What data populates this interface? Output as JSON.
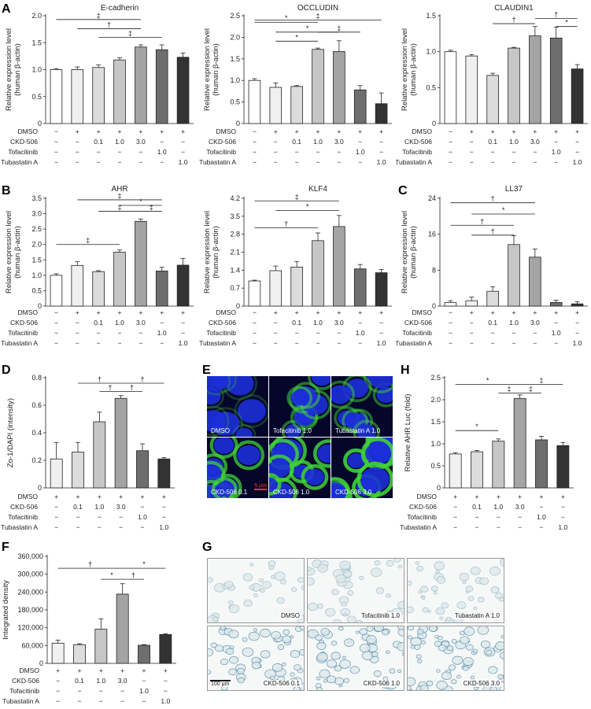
{
  "panel_letters": [
    "A",
    "B",
    "C",
    "D",
    "E",
    "F",
    "G",
    "H"
  ],
  "common": {
    "treat_labels": [
      "DMSO",
      "CKD-506",
      "Tofacitinib",
      "Tubastatin A"
    ],
    "treat_rows7": [
      [
        "−",
        "+",
        "+",
        "+",
        "+",
        "+",
        "+"
      ],
      [
        "−",
        "−",
        "0.1",
        "1.0",
        "3.0",
        "−",
        "−"
      ],
      [
        "−",
        "−",
        "−",
        "−",
        "−",
        "1.0",
        "−"
      ],
      [
        "−",
        "−",
        "−",
        "−",
        "−",
        "−",
        "1.0"
      ]
    ],
    "treat_rows6": [
      [
        "+",
        "+",
        "+",
        "+",
        "+",
        "+"
      ],
      [
        "−",
        "0.1",
        "1.0",
        "3.0",
        "−",
        "−"
      ],
      [
        "−",
        "−",
        "−",
        "−",
        "1.0",
        "−"
      ],
      [
        "−",
        "−",
        "−",
        "−",
        "−",
        "1.0"
      ]
    ],
    "ylabel_rel": [
      "Relative expression level",
      "(human β-actin)"
    ],
    "fills7": [
      "#ffffff",
      "#f0f0f0",
      "#dcdcdc",
      "#c6c6c6",
      "#a4a4a4",
      "#6e6e6e",
      "#333333"
    ],
    "fills6": [
      "#f0f0f0",
      "#dcdcdc",
      "#c6c6c6",
      "#a4a4a4",
      "#6e6e6e",
      "#333333"
    ]
  },
  "chart_data": [
    {
      "id": "A1",
      "type": "bar",
      "title": "E-cadherin",
      "ylabel": [
        "Relative expression level",
        "(human β-actin)"
      ],
      "ylim": [
        0,
        2.0
      ],
      "yticks": [
        "0",
        "0.5",
        "1.0",
        "1.5",
        "2.0"
      ],
      "values": [
        1.0,
        1.0,
        1.04,
        1.18,
        1.42,
        1.37,
        1.23
      ],
      "errors": [
        0.02,
        0.05,
        0.05,
        0.04,
        0.04,
        0.09,
        0.08
      ],
      "sig": [
        {
          "from": 0,
          "to": 4,
          "mark": "‡",
          "level": 1.93
        },
        {
          "from": 1,
          "to": 4,
          "mark": "†",
          "level": 1.76
        },
        {
          "from": 2,
          "to": 5,
          "mark": "‡",
          "level": 1.6
        }
      ]
    },
    {
      "id": "A2",
      "type": "bar",
      "title": "OCCLUDIN",
      "ylabel": [
        "Relative expression level",
        "(human β-actin)"
      ],
      "ylim": [
        0,
        2.5
      ],
      "yticks": [
        "0",
        "0.5",
        "1.0",
        "1.5",
        "2.0",
        "2.5"
      ],
      "values": [
        1.0,
        0.84,
        0.86,
        1.72,
        1.67,
        0.78,
        0.46
      ],
      "errors": [
        0.04,
        0.1,
        0.02,
        0.03,
        0.25,
        0.1,
        0.25
      ],
      "sig": [
        {
          "from": 0,
          "to": 3,
          "mark": "*",
          "level": 2.35
        },
        {
          "from": 0,
          "to": 6,
          "mark": "‡",
          "level": 2.4,
          "stagger": true
        },
        {
          "from": 1,
          "to": 4,
          "mark": "*",
          "level": 2.12
        },
        {
          "from": 3,
          "to": 5,
          "mark": "‡",
          "level": 2.12
        },
        {
          "from": 1,
          "to": 3,
          "mark": "*",
          "level": 1.91
        }
      ]
    },
    {
      "id": "A3",
      "type": "bar",
      "title": "CLAUDIN1",
      "ylabel": [
        "Relative expression level",
        "(human β-actin)"
      ],
      "ylim": [
        0,
        1.5
      ],
      "yticks": [
        "0",
        "0.5",
        "1.0",
        "1.5"
      ],
      "values": [
        1.0,
        0.94,
        0.67,
        1.05,
        1.22,
        1.19,
        0.76
      ],
      "errors": [
        0.02,
        0.02,
        0.03,
        0.01,
        0.13,
        0.15,
        0.06
      ],
      "sig": [
        {
          "from": 2,
          "to": 4,
          "mark": "†",
          "level": 1.39
        },
        {
          "from": 4,
          "to": 6,
          "mark": "†",
          "level": 1.46
        },
        {
          "from": 5,
          "to": 6,
          "mark": "*",
          "level": 1.35
        }
      ]
    },
    {
      "id": "B1",
      "type": "bar",
      "title": "AHR",
      "ylabel": [
        "Relative expression level",
        "(human β-actin)"
      ],
      "ylim": [
        0,
        3.5
      ],
      "yticks": [
        "0",
        "0.5",
        "1.0",
        "1.5",
        "2.0",
        "2.5",
        "3.0",
        "3.5"
      ],
      "values": [
        1.0,
        1.32,
        1.12,
        1.75,
        2.75,
        1.14,
        1.33
      ],
      "errors": [
        0.05,
        0.12,
        0.03,
        0.07,
        0.08,
        0.12,
        0.22
      ],
      "sig": [
        {
          "from": 1,
          "to": 5,
          "mark": "‡",
          "level": 3.45
        },
        {
          "from": 3,
          "to": 5,
          "mark": "*",
          "level": 3.27
        },
        {
          "from": 2,
          "to": 4,
          "mark": "‡",
          "level": 3.08
        },
        {
          "from": 4,
          "to": 5,
          "mark": "‡",
          "level": 3.08
        },
        {
          "from": 0,
          "to": 3,
          "mark": "‡",
          "level": 2.0
        }
      ]
    },
    {
      "id": "B2",
      "type": "bar",
      "title": "KLF4",
      "ylabel": [
        "Relative expression level",
        "(human β-actin)"
      ],
      "ylim": [
        0,
        4.2
      ],
      "yticks": [
        "0",
        "0.7",
        "1.4",
        "2.1",
        "2.8",
        "3.5",
        "4.2"
      ],
      "values": [
        0.98,
        1.38,
        1.52,
        2.55,
        3.1,
        1.45,
        1.3
      ],
      "errors": [
        0.03,
        0.18,
        0.22,
        0.3,
        0.43,
        0.17,
        0.13
      ],
      "sig": [
        {
          "from": 0,
          "to": 4,
          "mark": "‡",
          "level": 4.1
        },
        {
          "from": 1,
          "to": 4,
          "mark": "*",
          "level": 3.72
        },
        {
          "from": 0,
          "to": 3,
          "mark": "†",
          "level": 3.05
        }
      ]
    },
    {
      "id": "C",
      "type": "bar",
      "title": "LL37",
      "ylabel": [
        "Relative expression level",
        "(human β-actin)"
      ],
      "ylim": [
        0,
        24
      ],
      "yticks": [
        "0",
        "8",
        "16",
        "24"
      ],
      "values": [
        0.8,
        1.2,
        3.3,
        13.7,
        10.9,
        0.8,
        0.5
      ],
      "errors": [
        0.4,
        0.8,
        1.0,
        2.0,
        1.8,
        0.5,
        0.5
      ],
      "sig": [
        {
          "from": 0,
          "to": 4,
          "mark": "†",
          "level": 23.0
        },
        {
          "from": 1,
          "to": 4,
          "mark": "*",
          "level": 20.5
        },
        {
          "from": 0,
          "to": 3,
          "mark": "†",
          "level": 18.0
        },
        {
          "from": 1,
          "to": 3,
          "mark": "†",
          "level": 15.8
        }
      ]
    },
    {
      "id": "D",
      "type": "bar",
      "title": "",
      "ylabel": [
        "Zo-1/DAPI (intensity)"
      ],
      "ylim": [
        0,
        0.8
      ],
      "yticks": [
        "0",
        "0.2",
        "0.4",
        "0.6",
        "0.8"
      ],
      "values": [
        0.21,
        0.26,
        0.48,
        0.65,
        0.27,
        0.21
      ],
      "errors": [
        0.12,
        0.07,
        0.07,
        0.02,
        0.05,
        0.01
      ],
      "sig": [
        {
          "from": 1,
          "to": 3,
          "mark": "†",
          "level": 0.76
        },
        {
          "from": 3,
          "to": 5,
          "mark": "†",
          "level": 0.76
        },
        {
          "from": 2,
          "to": 3,
          "mark": "†",
          "level": 0.7
        },
        {
          "from": 3,
          "to": 4,
          "mark": "†",
          "level": 0.7
        }
      ]
    },
    {
      "id": "H",
      "type": "bar",
      "title": "",
      "ylabel": [
        "Relative AHR Luc (fold)"
      ],
      "ylim": [
        0,
        2.5
      ],
      "yticks": [
        "0",
        "0.5",
        "1.0",
        "1.5",
        "2.0",
        "2.5"
      ],
      "values": [
        0.77,
        0.82,
        1.06,
        2.03,
        1.09,
        0.96
      ],
      "errors": [
        0.03,
        0.03,
        0.05,
        0.08,
        0.08,
        0.07
      ],
      "sig": [
        {
          "from": 0,
          "to": 3,
          "mark": "*",
          "level": 2.35
        },
        {
          "from": 3,
          "to": 5,
          "mark": "‡",
          "level": 2.35
        },
        {
          "from": 0,
          "to": 2,
          "mark": "*",
          "level": 1.3
        },
        {
          "from": 2,
          "to": 3,
          "mark": "‡",
          "level": 2.15
        },
        {
          "from": 3,
          "to": 4,
          "mark": "‡",
          "level": 2.15
        }
      ]
    },
    {
      "id": "F",
      "type": "bar",
      "title": "",
      "ylabel": [
        "Integrated density"
      ],
      "ylim": [
        0,
        360000
      ],
      "yticks": [
        "0",
        "60,000",
        "120,000",
        "180,000",
        "240,000",
        "300,000",
        "360,000"
      ],
      "values": [
        68000,
        63000,
        115000,
        233000,
        61000,
        97000
      ],
      "errors": [
        10000,
        3000,
        35000,
        35000,
        2000,
        3000
      ],
      "sig": [
        {
          "from": 0,
          "to": 3,
          "mark": "†",
          "level": 320000
        },
        {
          "from": 3,
          "to": 5,
          "mark": "*",
          "level": 320000
        },
        {
          "from": 2,
          "to": 3,
          "mark": "*",
          "level": 283000
        },
        {
          "from": 3,
          "to": 4,
          "mark": "†",
          "level": 283000
        }
      ]
    }
  ],
  "micro_e": [
    {
      "label": "DMSO",
      "dark": true
    },
    {
      "label": "Tofacitinib 1.0",
      "dark": true
    },
    {
      "label": "Tubastatin A 1.0",
      "dark": true
    },
    {
      "label": "CKD-506 0.1",
      "dark": true
    },
    {
      "label": "CKD-506 1.0",
      "dark": true
    },
    {
      "label": "CKD-506 3.0",
      "dark": true
    }
  ],
  "micro_e_scale": "5 μm",
  "micro_g": [
    {
      "label": "DMSO"
    },
    {
      "label": "Tofacitinib 1.0"
    },
    {
      "label": "Tubastatin A 1.0"
    },
    {
      "label": "CKD-506 0.1"
    },
    {
      "label": "CKD-506 1.0"
    },
    {
      "label": "CKD-506 3.0"
    }
  ],
  "micro_g_scale": "100 μm"
}
